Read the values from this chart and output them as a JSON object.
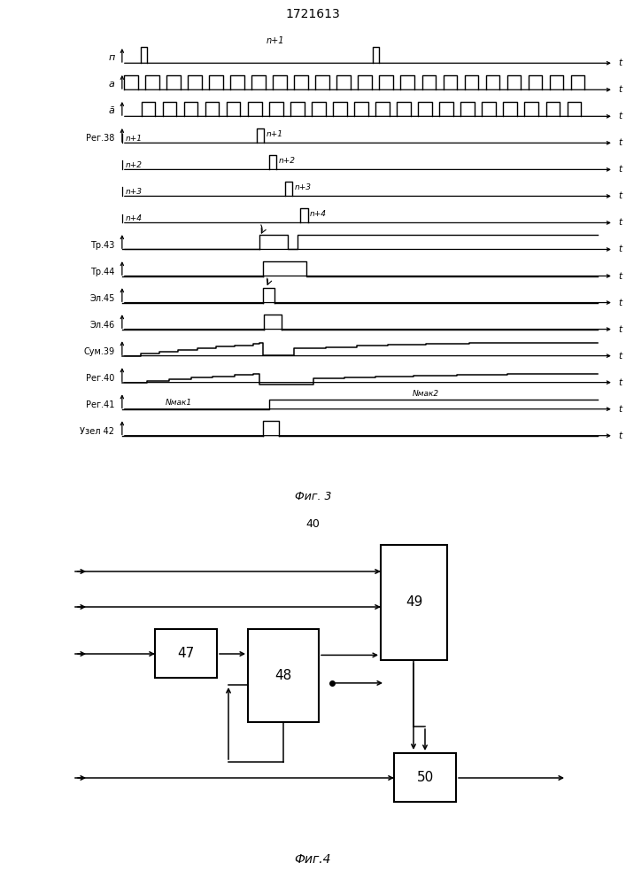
{
  "title": "1721613",
  "fig3_caption": "Фиг. 3",
  "fig4_caption": "Фиг.4",
  "fig4_label": "40",
  "bg_color": "#ffffff"
}
